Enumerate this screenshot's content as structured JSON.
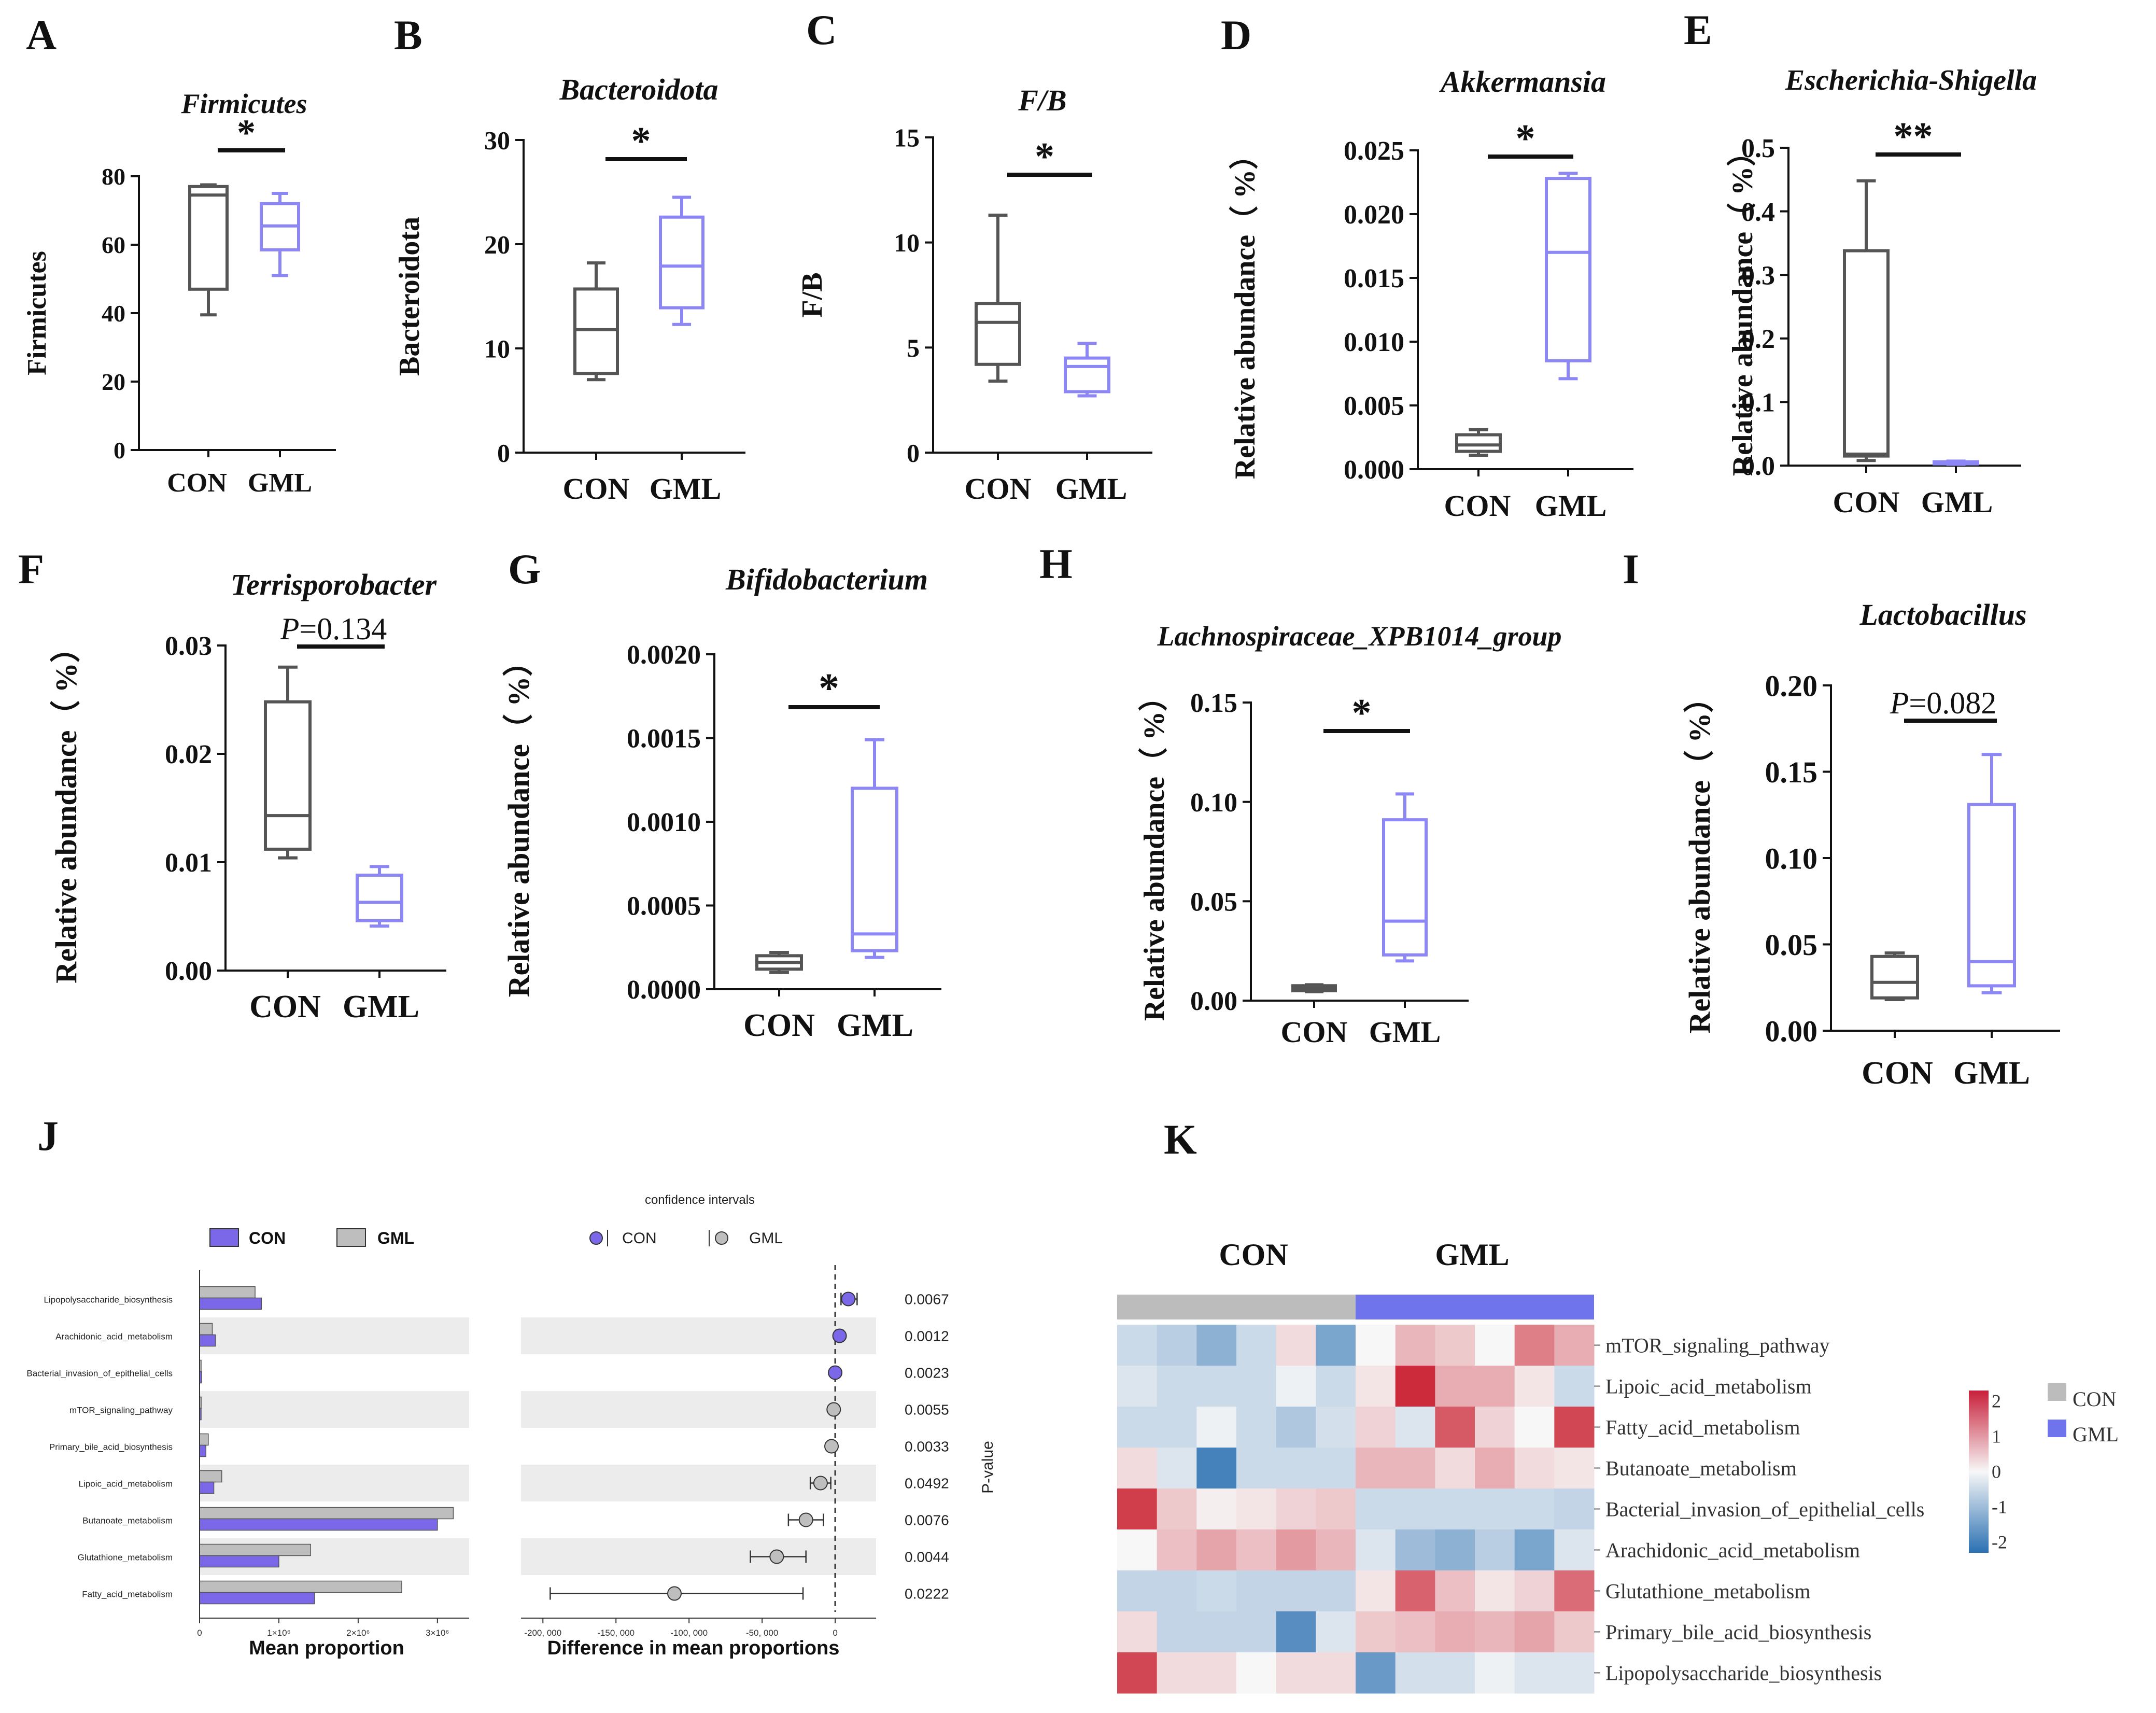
{
  "figure": {
    "colors": {
      "con": "#555555",
      "gml": "#8c87f5",
      "con_bar": "#bebebe",
      "gml_bar": "#7b68e8",
      "grid": "#ececec"
    }
  },
  "box_panels": [
    {
      "id": "A",
      "letter": "A",
      "title": "Firmicutes",
      "ylabel": "Firmicutes",
      "ticks": [
        "0",
        "20",
        "40",
        "60",
        "80"
      ],
      "ylim": [
        0,
        80
      ],
      "sig": "*",
      "groups": [
        "CON",
        "GML"
      ],
      "boxes": [
        {
          "group": "CON",
          "min": 39.5,
          "q1": 47,
          "median": 74.5,
          "q3": 77,
          "max": 77.5
        },
        {
          "group": "GML",
          "min": 51,
          "q1": 58.5,
          "median": 65.5,
          "q3": 72,
          "max": 75
        }
      ]
    },
    {
      "id": "B",
      "letter": "B",
      "title": "Bacteroidota",
      "ylabel": "Bacteroidota",
      "ticks": [
        "0",
        "10",
        "20",
        "30"
      ],
      "ylim": [
        0,
        30
      ],
      "sig": "*",
      "groups": [
        "CON",
        "GML"
      ],
      "boxes": [
        {
          "group": "CON",
          "min": 7,
          "q1": 7.6,
          "median": 11.8,
          "q3": 15.7,
          "max": 18.2
        },
        {
          "group": "GML",
          "min": 12.3,
          "q1": 13.9,
          "median": 17.9,
          "q3": 22.6,
          "max": 24.5
        }
      ]
    },
    {
      "id": "C",
      "letter": "C",
      "title": "F/B",
      "ylabel": "F/B",
      "ticks": [
        "0",
        "5",
        "10",
        "15"
      ],
      "ylim": [
        0,
        15
      ],
      "sig": "*",
      "groups": [
        "CON",
        "GML"
      ],
      "boxes": [
        {
          "group": "CON",
          "min": 3.4,
          "q1": 4.2,
          "median": 6.2,
          "q3": 7.1,
          "max": 11.3
        },
        {
          "group": "GML",
          "min": 2.7,
          "q1": 2.9,
          "median": 4.1,
          "q3": 4.5,
          "max": 5.2
        }
      ]
    },
    {
      "id": "D",
      "letter": "D",
      "title": "Akkermansia",
      "ylabel": "Relative abundance（ %）",
      "ticks": [
        "0.000",
        "0.005",
        "0.010",
        "0.015",
        "0.020",
        "0.025"
      ],
      "ylim": [
        0,
        0.025
      ],
      "sig": "*",
      "groups": [
        "CON",
        "GML"
      ],
      "boxes": [
        {
          "group": "CON",
          "min": 0.0011,
          "q1": 0.0014,
          "median": 0.0019,
          "q3": 0.0027,
          "max": 0.0031
        },
        {
          "group": "GML",
          "min": 0.0071,
          "q1": 0.0085,
          "median": 0.017,
          "q3": 0.0228,
          "max": 0.0232
        }
      ]
    },
    {
      "id": "E",
      "letter": "E",
      "title": "Escherichia-Shigella",
      "ylabel": "Relative abundance（ %）",
      "ticks": [
        "0.0",
        "0.1",
        "0.2",
        "0.3",
        "0.4",
        "0.5"
      ],
      "ylim": [
        0,
        0.5
      ],
      "sig": "**",
      "groups": [
        "CON",
        "GML"
      ],
      "boxes": [
        {
          "group": "CON",
          "min": 0.008,
          "q1": 0.015,
          "median": 0.018,
          "q3": 0.338,
          "max": 0.448
        },
        {
          "group": "GML",
          "min": 0.002,
          "q1": 0.003,
          "median": 0.004,
          "q3": 0.006,
          "max": 0.007
        }
      ]
    },
    {
      "id": "F",
      "letter": "F",
      "title": "Terrisporobacter",
      "ylabel": "Relative abundance（ %）",
      "ticks": [
        "0.00",
        "0.01",
        "0.02",
        "0.03"
      ],
      "ylim": [
        0,
        0.03
      ],
      "sig_p": "=0.134",
      "groups": [
        "CON",
        "GML"
      ],
      "boxes": [
        {
          "group": "CON",
          "min": 0.0104,
          "q1": 0.0112,
          "median": 0.0143,
          "q3": 0.0248,
          "max": 0.028
        },
        {
          "group": "GML",
          "min": 0.0041,
          "q1": 0.0046,
          "median": 0.0063,
          "q3": 0.0088,
          "max": 0.0096
        }
      ]
    },
    {
      "id": "G",
      "letter": "G",
      "title": "Bifidobacterium",
      "ylabel": "Relative abundance（ %）",
      "ticks": [
        "0.0000",
        "0.0005",
        "0.0010",
        "0.0015",
        "0.0020"
      ],
      "ylim": [
        0,
        0.002
      ],
      "sig": "*",
      "groups": [
        "CON",
        "GML"
      ],
      "boxes": [
        {
          "group": "CON",
          "min": 0.0001,
          "q1": 0.00012,
          "median": 0.00016,
          "q3": 0.0002,
          "max": 0.00022
        },
        {
          "group": "GML",
          "min": 0.00019,
          "q1": 0.00023,
          "median": 0.00033,
          "q3": 0.0012,
          "max": 0.00149
        }
      ]
    },
    {
      "id": "H",
      "letter": "H",
      "title": "Lachnospiraceae_XPB1014_group",
      "ylabel": "Relative abundance（ %）",
      "ticks": [
        "0.00",
        "0.05",
        "0.10",
        "0.15"
      ],
      "ylim": [
        0,
        0.15
      ],
      "sig": "*",
      "groups": [
        "CON",
        "GML"
      ],
      "boxes": [
        {
          "group": "CON",
          "min": 0.0045,
          "q1": 0.005,
          "median": 0.006,
          "q3": 0.0075,
          "max": 0.008
        },
        {
          "group": "GML",
          "min": 0.02,
          "q1": 0.023,
          "median": 0.04,
          "q3": 0.091,
          "max": 0.104
        }
      ]
    },
    {
      "id": "I",
      "letter": "I",
      "title": "Lactobacillus",
      "ylabel": "Relative abundance（ %）",
      "ticks": [
        "0.00",
        "0.05",
        "0.10",
        "0.15",
        "0.20"
      ],
      "ylim": [
        0,
        0.2
      ],
      "sig_p": "=0.082",
      "groups": [
        "CON",
        "GML"
      ],
      "boxes": [
        {
          "group": "CON",
          "min": 0.018,
          "q1": 0.019,
          "median": 0.028,
          "q3": 0.043,
          "max": 0.045
        },
        {
          "group": "GML",
          "min": 0.022,
          "q1": 0.026,
          "median": 0.04,
          "q3": 0.131,
          "max": 0.16
        }
      ]
    }
  ],
  "panel_j": {
    "letter": "J",
    "legend_bar": [
      "CON",
      "GML"
    ],
    "ci_title": "confidence intervals",
    "legend_ci": [
      "CON",
      "GML"
    ],
    "pvalue_axis_label": "P-value",
    "bar_xlabel": "Mean proportion",
    "bar_ticks": [
      "0",
      "1×10⁶",
      "2×10⁶",
      "3×10⁶"
    ],
    "bar_xlim": [
      0,
      3400000
    ],
    "diff_xlabel": "Difference in mean proportions",
    "diff_ticks": [
      "-200, 000",
      "-150, 000",
      "-100, 000",
      "-50, 000",
      "0"
    ],
    "diff_xlim": [
      -215000,
      28000
    ],
    "rows": [
      {
        "label": "Lipopolysaccharide_biosynthesis",
        "gml": 700000,
        "con": 780000,
        "diff": 9000,
        "lo": 4000,
        "hi": 15000,
        "higher": "CON",
        "p": "0.0067"
      },
      {
        "label": "Arachidonic_acid_metabolism",
        "gml": 160000,
        "con": 200000,
        "diff": 3000,
        "lo": 500,
        "hi": 5500,
        "higher": "CON",
        "p": "0.0012"
      },
      {
        "label": "Bacterial_invasion_of_epithelial_cells",
        "gml": 15000,
        "con": 25000,
        "diff": 0,
        "lo": -1000,
        "hi": 1500,
        "higher": "CON",
        "p": "0.0023"
      },
      {
        "label": "mTOR_signaling_pathway",
        "gml": 20000,
        "con": 12000,
        "diff": -1000,
        "lo": -2500,
        "hi": 500,
        "higher": "GML",
        "p": "0.0055"
      },
      {
        "label": "Primary_bile_acid_biosynthesis",
        "gml": 110000,
        "con": 80000,
        "diff": -2500,
        "lo": -4500,
        "hi": -500,
        "higher": "GML",
        "p": "0.0033"
      },
      {
        "label": "Lipoic_acid_metabolism",
        "gml": 280000,
        "con": 180000,
        "diff": -10000,
        "lo": -17000,
        "hi": -3000,
        "higher": "GML",
        "p": "0.0492"
      },
      {
        "label": "Butanoate_metabolism",
        "gml": 3200000,
        "con": 3000000,
        "diff": -20000,
        "lo": -32000,
        "hi": -8000,
        "higher": "GML",
        "p": "0.0076"
      },
      {
        "label": "Glutathione_metabolism",
        "gml": 1400000,
        "con": 1000000,
        "diff": -40000,
        "lo": -58000,
        "hi": -20000,
        "higher": "GML",
        "p": "0.0044"
      },
      {
        "label": "Fatty_acid_metabolism",
        "gml": 2550000,
        "con": 1450000,
        "diff": -110000,
        "lo": -195000,
        "hi": -22000,
        "higher": "GML",
        "p": "0.0222"
      }
    ]
  },
  "panel_k": {
    "letter": "K",
    "group_titles": [
      "CON",
      "GML"
    ],
    "legend_groups": [
      "CON",
      "GML"
    ],
    "scale_ticks": [
      "2",
      "1",
      "0",
      "-1",
      "-2"
    ],
    "scale_range": [
      -2.3,
      2.3
    ],
    "rows": [
      {
        "label": "mTOR_signaling_pathway",
        "values": [
          -0.5,
          -0.7,
          -1.2,
          -0.5,
          0.3,
          -1.4,
          0,
          0.7,
          0.5,
          0,
          1.3,
          0.8
        ]
      },
      {
        "label": "Lipoic_acid_metabolism",
        "values": [
          -0.3,
          -0.5,
          -0.5,
          -0.5,
          -0.1,
          -0.5,
          0.2,
          2.2,
          0.8,
          0.8,
          0.2,
          -0.5
        ]
      },
      {
        "label": "Fatty_acid_metabolism",
        "values": [
          -0.5,
          -0.5,
          -0.1,
          -0.5,
          -0.8,
          -0.4,
          0.4,
          -0.3,
          1.7,
          0.4,
          0,
          1.9
        ]
      },
      {
        "label": "Butanoate_metabolism",
        "values": [
          0.3,
          -0.3,
          -2.0,
          -0.5,
          -0.5,
          -0.5,
          0.7,
          0.7,
          0.3,
          0.8,
          0.3,
          0.2
        ]
      },
      {
        "label": "Bacterial_invasion_of_epithelial_cells",
        "values": [
          2.0,
          0.5,
          0.1,
          0.2,
          0.4,
          0.5,
          -0.5,
          -0.5,
          -0.5,
          -0.5,
          -0.5,
          -0.6
        ]
      },
      {
        "label": "Arachidonic_acid_metabolism",
        "values": [
          0,
          0.6,
          0.9,
          0.6,
          1.0,
          0.7,
          -0.3,
          -1.0,
          -1.2,
          -0.7,
          -1.4,
          -0.3
        ]
      },
      {
        "label": "Glutathione_metabolism",
        "values": [
          -0.6,
          -0.6,
          -0.5,
          -0.6,
          -0.6,
          -0.6,
          0.2,
          1.6,
          0.6,
          0.2,
          0.4,
          1.5
        ]
      },
      {
        "label": "Primary_bile_acid_biosynthesis",
        "values": [
          0.3,
          -0.6,
          -0.6,
          -0.6,
          -1.8,
          -0.3,
          0.5,
          0.6,
          0.8,
          0.7,
          0.9,
          0.5
        ]
      },
      {
        "label": "Lipopolysaccharide_biosynthesis",
        "values": [
          1.9,
          0.3,
          0.3,
          0,
          0.3,
          0.3,
          -1.6,
          -0.4,
          -0.4,
          -0.1,
          -0.3,
          -0.3
        ]
      }
    ]
  }
}
